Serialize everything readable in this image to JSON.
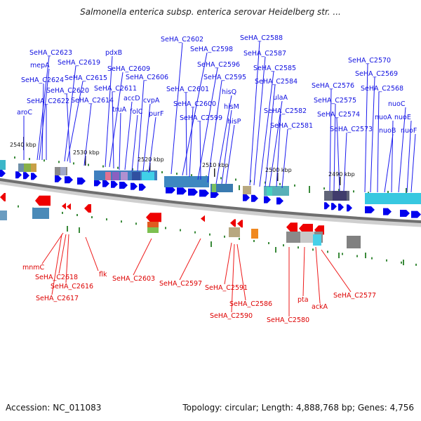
{
  "header": {
    "title": "Salmonella enterica subsp. enterica serovar Heidelberg str. ..."
  },
  "footer": {
    "accession": "Accession: NC_011083",
    "summary": "Topology: circular; Length: 4,888,768 bp; Genes: 4,756"
  },
  "colors": {
    "forward": "#0000ee",
    "reverse": "#ee0000",
    "backbone": "#777777",
    "rna": "#3a8a3a"
  },
  "scale_ticks": [
    "2540 kbp",
    "2530 kbp",
    "2520 kbp",
    "2510 kbp",
    "2500 kbp",
    "2490 kbp"
  ],
  "forward_labels": [
    "SeHA_C2623",
    "mepA",
    "SeHA_C2624",
    "SeHA_C2622",
    "aroC",
    "SeHA_C2619",
    "SeHA_C2615",
    "SeHA_C2620",
    "SeHA_C2614",
    "pdxB",
    "SeHA_C2609",
    "SeHA_C2611",
    "truA",
    "accD",
    "folC",
    "SeHA_C2606",
    "cvpA",
    "purF",
    "SeHA_C2602",
    "SeHA_C2598",
    "SeHA_C2596",
    "SeHA_C2601",
    "SeHA_C2600",
    "SeHA_C2599",
    "SeHA_C2595",
    "hisQ",
    "hisM",
    "hisP",
    "SeHA_C2588",
    "SeHA_C2587",
    "SeHA_C2585",
    "SeHA_C2584",
    "ulaA",
    "SeHA_C2582",
    "SeHA_C2581",
    "SeHA_C2576",
    "SeHA_C2575",
    "SeHA_C2574",
    "SeHA_C2573",
    "SeHA_C2570",
    "SeHA_C2569",
    "SeHA_C2568",
    "nuoC",
    "nuoA",
    "nuoE",
    "nuoB",
    "nuoF"
  ],
  "reverse_labels": [
    "mnmC",
    "SeHA_C2618",
    "SeHA_C2616",
    "SeHA_C2617",
    "flk",
    "SeHA_C2603",
    "SeHA_C2597",
    "SeHA_C2591",
    "SeHA_C2586",
    "SeHA_C2590",
    "SeHA_C2580",
    "pta",
    "ackA",
    "SeHA_C2577"
  ]
}
